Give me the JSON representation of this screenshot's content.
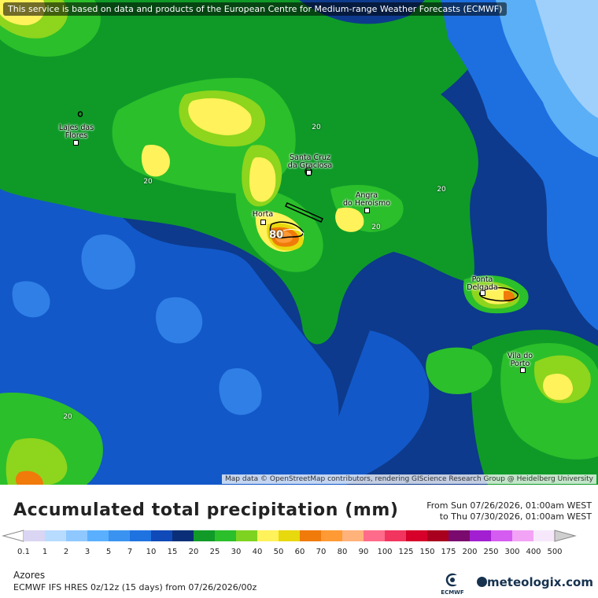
{
  "map": {
    "notice": "This service is based on data and products of the European Centre for Medium-range Weather Forecasts (ECMWF)",
    "attribution": "Map data © OpenStreetMap contributors, rendering GIScience Research Group @ Heidelberg University",
    "places": [
      {
        "name": "Lajes das Flores",
        "lines": [
          "Lajes das",
          "Flores"
        ]
      },
      {
        "name": "Santa Cruz da Graciosa",
        "lines": [
          "Santa Cruz",
          "da Graciosa"
        ]
      },
      {
        "name": "Angra do Heroísmo",
        "lines": [
          "Angra",
          "do Heroísmo"
        ]
      },
      {
        "name": "Horta",
        "lines": [
          "Horta"
        ]
      },
      {
        "name": "Ponta Delgada",
        "lines": [
          "Ponta",
          "Delgada"
        ]
      },
      {
        "name": "Vila do Porto",
        "lines": [
          "Vila do",
          "Porto"
        ]
      }
    ],
    "contour_labels": [
      "20",
      "20",
      "20",
      "20",
      "20",
      "80"
    ]
  },
  "legend": {
    "title": "Accumulated total precipitation (mm)",
    "from": "From Sun 07/26/2026, 01:00am WEST",
    "to": "to Thu 07/30/2026, 01:00am WEST",
    "thresholds": [
      "0.1",
      "1",
      "2",
      "3",
      "5",
      "7",
      "10",
      "15",
      "20",
      "25",
      "30",
      "40",
      "50",
      "60",
      "70",
      "80",
      "90",
      "100",
      "125",
      "150",
      "175",
      "200",
      "250",
      "300",
      "400",
      "500"
    ],
    "colors": [
      "#d9d5f2",
      "#b7dcff",
      "#8ec8ff",
      "#5ab0ff",
      "#3a93f0",
      "#1f73e0",
      "#1049b8",
      "#0a2f78",
      "#119a28",
      "#2bbf2b",
      "#7ed321",
      "#fff25a",
      "#e8d80e",
      "#f07a0a",
      "#ff9a35",
      "#ffb27a",
      "#ff6b8a",
      "#f2355f",
      "#d6002a",
      "#a8001e",
      "#7a0a6e",
      "#a11fd0",
      "#d45cf0",
      "#f2a3f5",
      "#f6e8fa",
      "#cfcfcf"
    ]
  },
  "footer": {
    "region": "Azores",
    "model": "ECMWF IFS HRES 0z/12z (15 days) from 07/26/2026/00z",
    "ecmwf_label": "ECMWF",
    "brand": "meteologix.com"
  }
}
